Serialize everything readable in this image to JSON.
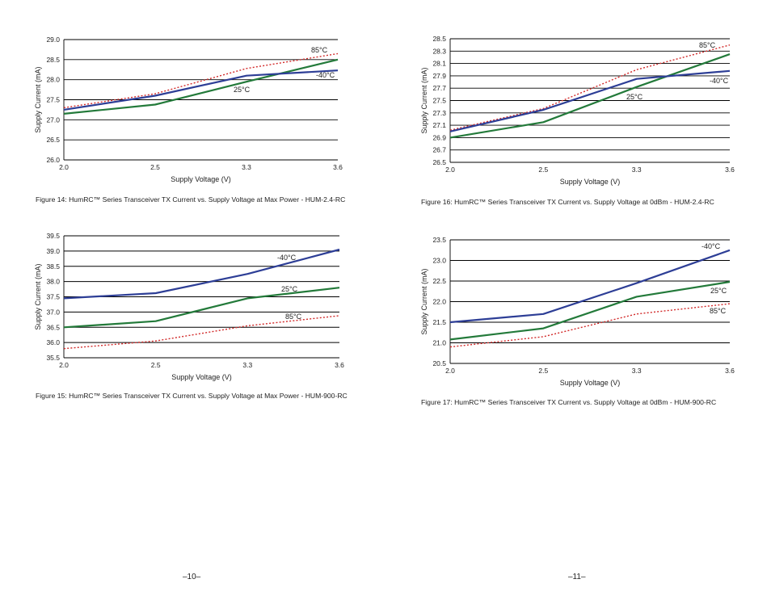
{
  "colors": {
    "c40": "#2d3e96",
    "c25": "#237a3a",
    "c85": "#d22a2a",
    "grid": "#000000"
  },
  "charts": [
    {
      "caption": "Figure 14: HumRC™ Series Transceiver TX Current vs. Supply Voltage at Max Power - HUM-2.4-RC",
      "xlabel": "Supply Voltage (V)",
      "ylabel": "Supply Current (mA)",
      "x_tick_labels": [
        "2.0",
        "2.5",
        "3.3",
        "3.6"
      ],
      "y_tick_labels": [
        "26.0",
        "26.5",
        "27.0",
        "27.5",
        "28.0",
        "28.5",
        "29.0"
      ],
      "series_labels": {
        "m40": "-40°C",
        "t25": "25°C",
        "t85": "85°C"
      }
    },
    {
      "caption": "Figure 16: HumRC™ Series Transceiver TX Current vs. Supply Voltage at 0dBm - HUM-2.4-RC",
      "xlabel": "Supply Voltage (V)",
      "ylabel": "Supply Current (mA)",
      "x_tick_labels": [
        "2.0",
        "2.5",
        "3.3",
        "3.6"
      ],
      "y_tick_labels": [
        "26.5",
        "26.7",
        "26.9",
        "27.1",
        "27.3",
        "27.5",
        "27.7",
        "27.9",
        "28.1",
        "28.3",
        "28.5"
      ],
      "series_labels": {
        "m40": "-40°C",
        "t25": "25°C",
        "t85": "85°C"
      }
    },
    {
      "caption": "Figure 15: HumRC™ Series Transceiver TX Current vs. Supply Voltage at Max Power - HUM-900-RC",
      "xlabel": "Supply Voltage (V)",
      "ylabel": "Supply Current (mA)",
      "x_tick_labels": [
        "2.0",
        "2.5",
        "3.3",
        "3.6"
      ],
      "y_tick_labels": [
        "35.5",
        "36.0",
        "36.5",
        "37.0",
        "37.5",
        "38.0",
        "38.5",
        "39.0",
        "39.5"
      ],
      "series_labels": {
        "m40": "-40°C",
        "t25": "25°C",
        "t85": "85°C"
      }
    },
    {
      "caption": "Figure 17: HumRC™ Series Transceiver TX Current vs. Supply Voltage at 0dBm - HUM-900-RC",
      "xlabel": "Supply Voltage (V)",
      "ylabel": "Supply Current (mA)",
      "x_tick_labels": [
        "2.0",
        "2.5",
        "3.3",
        "3.6"
      ],
      "y_tick_labels": [
        "20.5",
        "21.0",
        "21.5",
        "22.0",
        "22.5",
        "23.0",
        "23.5"
      ],
      "series_labels": {
        "m40": "-40°C",
        "t25": "25°C",
        "t85": "85°C"
      }
    }
  ],
  "chart_data": [
    {
      "type": "line",
      "title": "",
      "xlabel": "Supply Voltage (V)",
      "ylabel": "Supply Current (mA)",
      "categories": [
        "2.0",
        "2.5",
        "3.3",
        "3.6"
      ],
      "ylim": [
        26.0,
        29.0
      ],
      "grid": true,
      "series": [
        {
          "name": "-40°C",
          "values": [
            27.25,
            27.6,
            28.1,
            28.23
          ]
        },
        {
          "name": "25°C",
          "values": [
            27.15,
            27.38,
            27.95,
            28.5
          ]
        },
        {
          "name": "85°C",
          "values": [
            27.3,
            27.65,
            28.28,
            28.65
          ]
        }
      ]
    },
    {
      "type": "line",
      "title": "",
      "xlabel": "Supply Voltage (V)",
      "ylabel": "Supply Current (mA)",
      "categories": [
        "2.0",
        "2.5",
        "3.3",
        "3.6"
      ],
      "ylim": [
        26.5,
        28.5
      ],
      "grid": true,
      "series": [
        {
          "name": "-40°C",
          "values": [
            27.0,
            27.35,
            27.85,
            27.98
          ]
        },
        {
          "name": "25°C",
          "values": [
            26.9,
            27.15,
            27.72,
            28.25
          ]
        },
        {
          "name": "85°C",
          "values": [
            27.02,
            27.37,
            28.0,
            28.4
          ]
        }
      ]
    },
    {
      "type": "line",
      "title": "",
      "xlabel": "Supply Voltage (V)",
      "ylabel": "Supply Current (mA)",
      "categories": [
        "2.0",
        "2.5",
        "3.3",
        "3.6"
      ],
      "ylim": [
        35.5,
        39.5
      ],
      "grid": true,
      "series": [
        {
          "name": "-40°C",
          "values": [
            37.45,
            37.62,
            38.25,
            39.05
          ]
        },
        {
          "name": "25°C",
          "values": [
            36.5,
            36.7,
            37.45,
            37.8
          ]
        },
        {
          "name": "85°C",
          "values": [
            35.8,
            36.05,
            36.55,
            36.88
          ]
        }
      ]
    },
    {
      "type": "line",
      "title": "",
      "xlabel": "Supply Voltage (V)",
      "ylabel": "Supply Current (mA)",
      "categories": [
        "2.0",
        "2.5",
        "3.3",
        "3.6"
      ],
      "ylim": [
        20.5,
        23.5
      ],
      "grid": true,
      "series": [
        {
          "name": "-40°C",
          "values": [
            21.5,
            21.7,
            22.45,
            23.25
          ]
        },
        {
          "name": "25°C",
          "values": [
            21.08,
            21.35,
            22.12,
            22.48
          ]
        },
        {
          "name": "85°C",
          "values": [
            20.9,
            21.15,
            21.7,
            21.95
          ]
        }
      ]
    }
  ],
  "pages": {
    "left": "–10–",
    "right": "–11–"
  }
}
